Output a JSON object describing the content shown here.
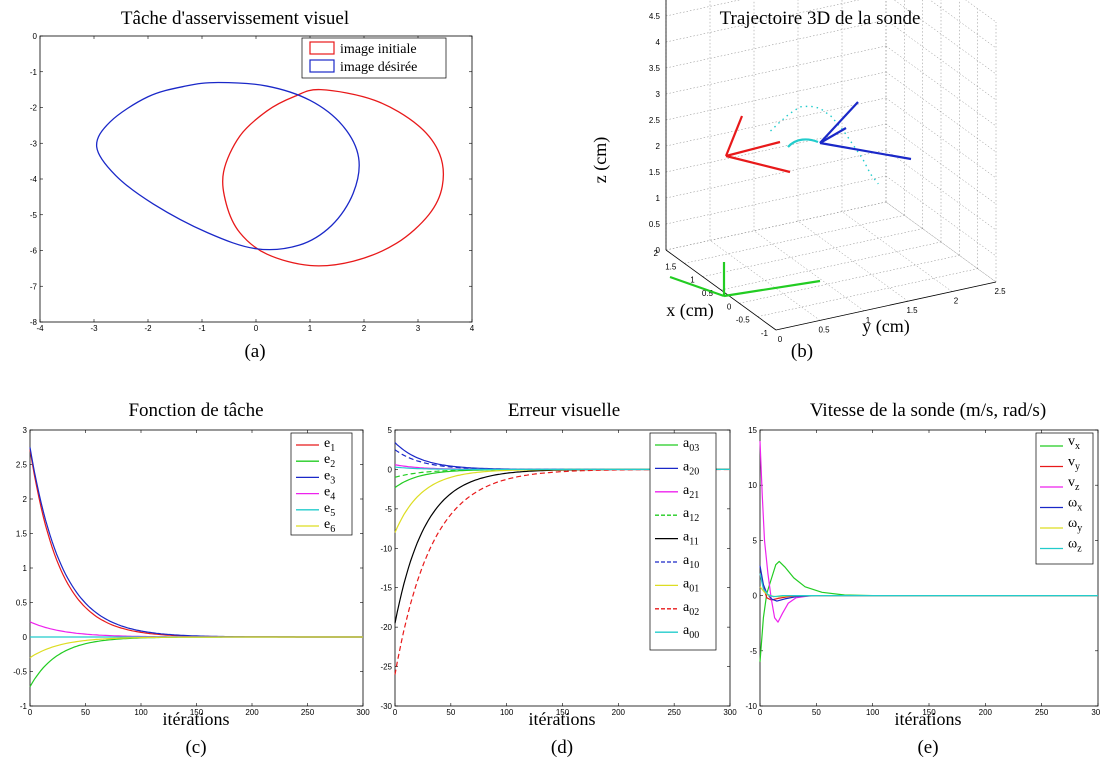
{
  "chart_data": [
    {
      "id": "a",
      "type": "line",
      "title": "Tâche d'asservissement visuel",
      "caption": "(a)",
      "xlim": [
        -4,
        4
      ],
      "ylim": [
        -8,
        0
      ],
      "xticks": [
        -4,
        -3,
        -2,
        -1,
        0,
        1,
        2,
        3,
        4
      ],
      "yticks": [
        0,
        -1,
        -2,
        -3,
        -4,
        -5,
        -6,
        -7,
        -8
      ],
      "legend": "top-right",
      "series": [
        {
          "name": "image initiale",
          "color": "#e8191a",
          "closed": true,
          "points": [
            [
              1.2,
              -1.5
            ],
            [
              2.2,
              -1.8
            ],
            [
              3.0,
              -2.5
            ],
            [
              3.4,
              -3.3
            ],
            [
              3.45,
              -4.2
            ],
            [
              3.2,
              -5.0
            ],
            [
              2.6,
              -5.8
            ],
            [
              1.8,
              -6.3
            ],
            [
              1.0,
              -6.42
            ],
            [
              0.2,
              -6.1
            ],
            [
              -0.3,
              -5.5
            ],
            [
              -0.55,
              -4.7
            ],
            [
              -0.6,
              -3.8
            ],
            [
              -0.3,
              -2.8
            ],
            [
              0.2,
              -2.1
            ],
            [
              0.7,
              -1.7
            ]
          ]
        },
        {
          "name": "image désirée",
          "color": "#1a28c8",
          "closed": true,
          "points": [
            [
              -0.7,
              -1.3
            ],
            [
              0.2,
              -1.4
            ],
            [
              1.0,
              -1.8
            ],
            [
              1.6,
              -2.5
            ],
            [
              1.9,
              -3.4
            ],
            [
              1.8,
              -4.4
            ],
            [
              1.4,
              -5.3
            ],
            [
              0.8,
              -5.85
            ],
            [
              0.0,
              -5.95
            ],
            [
              -0.9,
              -5.5
            ],
            [
              -1.9,
              -4.7
            ],
            [
              -2.6,
              -3.9
            ],
            [
              -2.95,
              -3.1
            ],
            [
              -2.7,
              -2.4
            ],
            [
              -2.0,
              -1.7
            ],
            [
              -1.3,
              -1.4
            ]
          ]
        }
      ]
    },
    {
      "id": "b",
      "type": "scatter",
      "title": "Trajectoire 3D de la sonde",
      "caption": "(b)",
      "xlabel": "x (cm)",
      "ylabel": "y (cm)",
      "zlabel": "z (cm)",
      "xlim": [
        -1,
        2
      ],
      "ylim": [
        0,
        2.5
      ],
      "zlim": [
        0,
        5
      ],
      "xticks": [
        "2",
        "1.5",
        "1",
        "0.5",
        "0",
        "-0.5",
        "-1"
      ],
      "yticks": [
        "0",
        "0.5",
        "1",
        "1.5",
        "2",
        "2.5"
      ],
      "zticks": [
        "0",
        "0.5",
        "1",
        "1.5",
        "2",
        "2.5",
        "3",
        "3.5",
        "4",
        "4.5",
        "5"
      ],
      "grid": true
    },
    {
      "id": "c",
      "type": "line",
      "title": "Fonction de tâche",
      "caption": "(c)",
      "xlabel": "itérations",
      "xlim": [
        0,
        300
      ],
      "ylim": [
        -1,
        3
      ],
      "xticks": [
        0,
        50,
        100,
        150,
        200,
        250,
        300
      ],
      "yticks": [
        -1,
        -0.5,
        0,
        0.5,
        1,
        1.5,
        2,
        2.5,
        3
      ],
      "legend": "top-right",
      "series": [
        {
          "name": "e",
          "sub": "1",
          "color": "#e8191a",
          "dash": false,
          "start": 2.72,
          "tau": 27
        },
        {
          "name": "e",
          "sub": "2",
          "color": "#22cc22",
          "dash": false,
          "start": -0.72,
          "tau": 25
        },
        {
          "name": "e",
          "sub": "3",
          "color": "#1a28c8",
          "dash": false,
          "start": 2.75,
          "tau": 29
        },
        {
          "name": "e",
          "sub": "4",
          "color": "#ee22ee",
          "dash": false,
          "start": 0.22,
          "tau": 30
        },
        {
          "name": "e",
          "sub": "5",
          "color": "#22cccc",
          "dash": false,
          "start": 0.0,
          "tau": 20
        },
        {
          "name": "e",
          "sub": "6",
          "color": "#dddd22",
          "dash": false,
          "start": -0.3,
          "tau": 28
        }
      ]
    },
    {
      "id": "d",
      "type": "line",
      "title": "Erreur visuelle",
      "caption": "(d)",
      "xlabel": "itérations",
      "xlim": [
        0,
        300
      ],
      "ylim": [
        -30,
        5
      ],
      "xticks": [
        0,
        50,
        100,
        150,
        200,
        250,
        300
      ],
      "yticks": [
        5,
        0,
        -5,
        -10,
        -15,
        -20,
        -25,
        -30
      ],
      "legend": "top-right",
      "series": [
        {
          "name": "a",
          "sub": "03",
          "color": "#22cc22",
          "dash": false,
          "start": -2.3,
          "tau": 22
        },
        {
          "name": "a",
          "sub": "20",
          "color": "#1a28c8",
          "dash": false,
          "start": 3.4,
          "tau": 24
        },
        {
          "name": "a",
          "sub": "21",
          "color": "#ee22ee",
          "dash": false,
          "start": 0.6,
          "tau": 22
        },
        {
          "name": "a",
          "sub": "12",
          "color": "#22cc22",
          "dash": true,
          "start": -1.0,
          "tau": 25
        },
        {
          "name": "a",
          "sub": "11",
          "color": "#000000",
          "dash": false,
          "start": -19.5,
          "tau": 27
        },
        {
          "name": "a",
          "sub": "10",
          "color": "#1a28c8",
          "dash": true,
          "start": 2.5,
          "tau": 24
        },
        {
          "name": "a",
          "sub": "01",
          "color": "#dddd22",
          "dash": false,
          "start": -8.0,
          "tau": 24
        },
        {
          "name": "a",
          "sub": "02",
          "color": "#e8191a",
          "dash": true,
          "start": -26.0,
          "tau": 33
        },
        {
          "name": "a",
          "sub": "00",
          "color": "#22cccc",
          "dash": false,
          "start": 0.3,
          "tau": 20
        }
      ]
    },
    {
      "id": "e",
      "type": "line",
      "title": "Vitesse de la sonde (m/s, rad/s)",
      "caption": "(e)",
      "xlabel": "itérations",
      "xlim": [
        0,
        300
      ],
      "ylim": [
        -10,
        15
      ],
      "xticks": [
        0,
        50,
        100,
        150,
        200,
        250,
        300
      ],
      "yticks": [
        15,
        10,
        5,
        0,
        -5,
        -10
      ],
      "legend": "top-right",
      "series": [
        {
          "name": "v",
          "sub": "x",
          "color": "#22cc22",
          "points": [
            [
              0,
              -6
            ],
            [
              3,
              -2
            ],
            [
              6,
              0.2
            ],
            [
              10,
              1.5
            ],
            [
              14,
              2.8
            ],
            [
              17,
              3.1
            ],
            [
              22,
              2.6
            ],
            [
              30,
              1.6
            ],
            [
              40,
              0.8
            ],
            [
              55,
              0.3
            ],
            [
              75,
              0.05
            ],
            [
              100,
              0
            ],
            [
              300,
              0
            ]
          ]
        },
        {
          "name": "v",
          "sub": "y",
          "color": "#e8191a",
          "points": [
            [
              0,
              2
            ],
            [
              3,
              0.8
            ],
            [
              6,
              -0.2
            ],
            [
              10,
              -0.4
            ],
            [
              16,
              -0.25
            ],
            [
              25,
              -0.1
            ],
            [
              40,
              0
            ],
            [
              300,
              0
            ]
          ]
        },
        {
          "name": "v",
          "sub": "z",
          "color": "#ee22ee",
          "points": [
            [
              0,
              14
            ],
            [
              2,
              9
            ],
            [
              4,
              5
            ],
            [
              7,
              2
            ],
            [
              10,
              -0.3
            ],
            [
              13,
              -2.0
            ],
            [
              16,
              -2.4
            ],
            [
              20,
              -1.6
            ],
            [
              25,
              -0.7
            ],
            [
              32,
              -0.2
            ],
            [
              45,
              0
            ],
            [
              300,
              0
            ]
          ]
        },
        {
          "name": "ω",
          "sub": "x",
          "color": "#1a28c8",
          "points": [
            [
              0,
              2.7
            ],
            [
              3,
              1.0
            ],
            [
              6,
              0.2
            ],
            [
              10,
              -0.3
            ],
            [
              15,
              -0.5
            ],
            [
              22,
              -0.3
            ],
            [
              32,
              -0.1
            ],
            [
              50,
              0
            ],
            [
              300,
              0
            ]
          ]
        },
        {
          "name": "ω",
          "sub": "y",
          "color": "#dddd22",
          "points": [
            [
              0,
              0.8
            ],
            [
              4,
              0.3
            ],
            [
              8,
              0
            ],
            [
              15,
              -0.1
            ],
            [
              30,
              0
            ],
            [
              300,
              0
            ]
          ]
        },
        {
          "name": "ω",
          "sub": "z",
          "color": "#22cccc",
          "points": [
            [
              0,
              2.0
            ],
            [
              3,
              0.6
            ],
            [
              7,
              0.1
            ],
            [
              12,
              -0.1
            ],
            [
              20,
              0
            ],
            [
              300,
              0
            ]
          ]
        }
      ]
    }
  ]
}
